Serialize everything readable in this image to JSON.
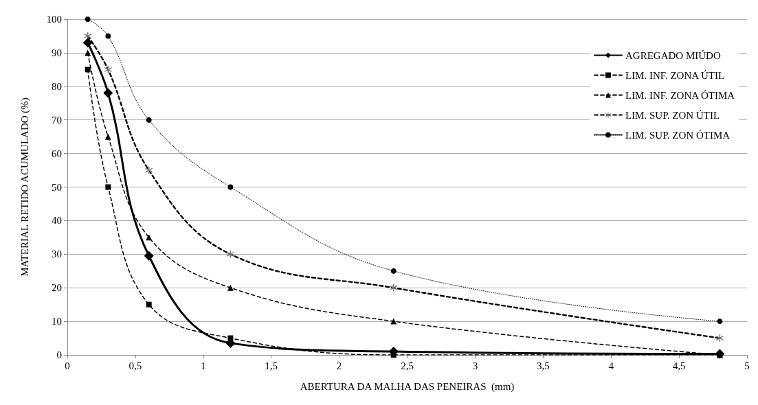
{
  "chart_data": {
    "type": "line",
    "xlabel": "ABERTURA DA MALHA DAS PENEIRAS  (mm)",
    "ylabel": "MATERIAL RETIDO ACUMULADO (%)",
    "x": [
      0.15,
      0.3,
      0.6,
      1.2,
      2.4,
      4.8
    ],
    "series": [
      {
        "name": "AGREGADO MIÚDO",
        "color": "#000000",
        "marker": "diamond",
        "line_style": "solid",
        "values": [
          93,
          78,
          29.5,
          3.5,
          1,
          0.3
        ]
      },
      {
        "name": "LIM. INF. ZONA ÚTIL",
        "color": "#000000",
        "marker": "square",
        "line_style": "dashed",
        "values": [
          85,
          50,
          15,
          5,
          0,
          0
        ]
      },
      {
        "name": "LIM. INF. ZONA ÓTIMA",
        "color": "#000000",
        "marker": "triangle",
        "line_style": "dashed",
        "values": [
          90,
          65,
          35,
          20,
          10,
          0
        ]
      },
      {
        "name": "LIM. SUP. ZON ÚTIL",
        "color": "#000000",
        "marker": "cross",
        "line_style": "dashed",
        "values": [
          95,
          85,
          55,
          30,
          20,
          5
        ]
      },
      {
        "name": "LIM. SUP. ZON ÓTIMA",
        "color": "#000000",
        "marker": "circle",
        "line_style": "dotted",
        "values": [
          100,
          95,
          70,
          50,
          25,
          10
        ]
      }
    ],
    "xlim": [
      0,
      5
    ],
    "xticks": [
      0,
      {
        "value": 0.5,
        "label": "0,5"
      },
      1,
      {
        "value": 1.5,
        "label": "1,5"
      },
      2,
      {
        "value": 2.5,
        "label": "2,5"
      },
      3,
      {
        "value": 3.5,
        "label": "3,5"
      },
      4,
      {
        "value": 4.5,
        "label": "4,5"
      },
      5
    ],
    "ylim": [
      0,
      100
    ],
    "yticks": [
      0,
      10,
      20,
      30,
      40,
      50,
      60,
      70,
      80,
      90,
      100
    ],
    "grid": "y",
    "legend": "right"
  }
}
